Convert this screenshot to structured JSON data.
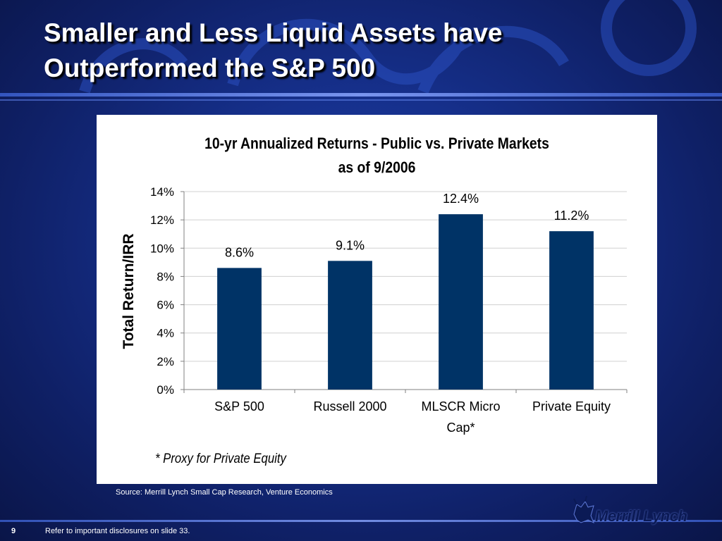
{
  "slide": {
    "title_line1": "Smaller and Less Liquid Assets have",
    "title_line2": "Outperformed the S&P 500",
    "source": "Source: Merrill Lynch Small Cap Research, Venture Economics",
    "page_number": "9",
    "disclosure": "Refer to important disclosures on slide 33.",
    "logo_text": "Merrill Lynch",
    "footnote": "* Proxy for Private Equity",
    "colors": {
      "bar": "#003366",
      "background": "#16308c",
      "panel": "#ffffff"
    }
  },
  "chart_data": {
    "type": "bar",
    "title": "10-yr Annualized Returns - Public vs. Private Markets",
    "subtitle": "as of 9/2006",
    "ylabel": "Total Return/IRR",
    "xlabel": "",
    "categories": [
      [
        "S&P 500"
      ],
      [
        "Russell 2000"
      ],
      [
        "MLSCR Micro",
        "Cap*"
      ],
      [
        "Private Equity"
      ]
    ],
    "values": [
      8.6,
      9.1,
      12.4,
      11.2
    ],
    "data_labels": [
      "8.6%",
      "9.1%",
      "12.4%",
      "11.2%"
    ],
    "ylim": [
      0,
      14
    ],
    "yticks": [
      0,
      2,
      4,
      6,
      8,
      10,
      12,
      14
    ],
    "ytick_labels": [
      "0%",
      "2%",
      "4%",
      "6%",
      "8%",
      "10%",
      "12%",
      "14%"
    ],
    "grid": true,
    "legend": "none"
  }
}
